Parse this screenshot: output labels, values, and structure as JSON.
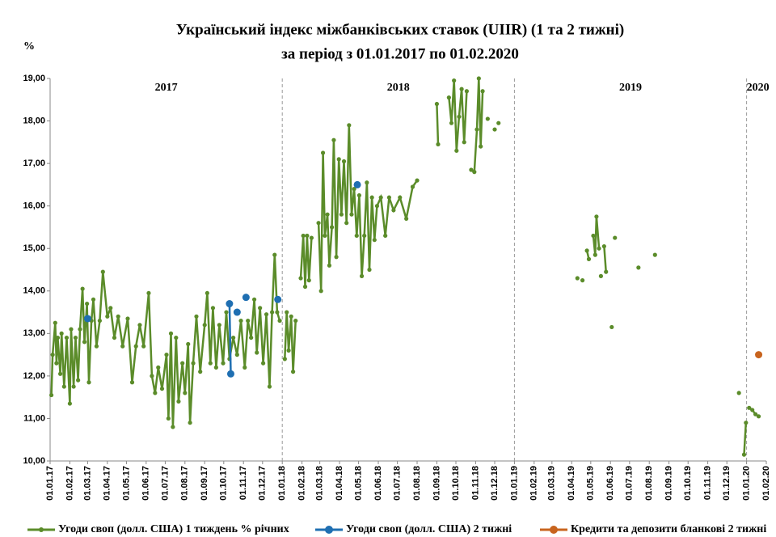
{
  "chart_data": {
    "type": "line",
    "title": "Український індекс міжбанківських ставок (UIIR) (1 та 2 тижні)",
    "subtitle": "за період з 01.01.2017 по 01.02.2020",
    "y_label": "%",
    "year_labels": [
      "2017",
      "2018",
      "2019",
      "2020"
    ],
    "dividers": [
      "01.01.18",
      "01.01.19",
      "01.01.20"
    ],
    "xlim": [
      "01.01.17",
      "01.02.20"
    ],
    "xticks": [
      "01.01.17",
      "01.02.17",
      "01.03.17",
      "01.04.17",
      "01.05.17",
      "01.06.17",
      "01.07.17",
      "01.08.17",
      "01.09.17",
      "01.10.17",
      "01.11.17",
      "01.12.17",
      "01.01.18",
      "01.02.18",
      "01.03.18",
      "01.04.18",
      "01.05.18",
      "01.06.18",
      "01.07.18",
      "01.08.18",
      "01.09.18",
      "01.10.18",
      "01.11.18",
      "01.12.18",
      "01.01.19",
      "01.02.19",
      "01.03.19",
      "01.04.19",
      "01.05.19",
      "01.06.19",
      "01.07.19",
      "01.08.19",
      "01.09.19",
      "01.10.19",
      "01.11.19",
      "01.12.19",
      "01.01.20",
      "01.02.20"
    ],
    "ylim": [
      10,
      19
    ],
    "yticks": [
      {
        "value": 10,
        "label": "10,00"
      },
      {
        "value": 11,
        "label": "11,00"
      },
      {
        "value": 12,
        "label": "12,00"
      },
      {
        "value": 13,
        "label": "13,00"
      },
      {
        "value": 14,
        "label": "14,00"
      },
      {
        "value": 15,
        "label": "15,00"
      },
      {
        "value": 16,
        "label": "16,00"
      },
      {
        "value": 17,
        "label": "17,00"
      },
      {
        "value": 18,
        "label": "18,00"
      },
      {
        "value": 19,
        "label": "19,00"
      }
    ],
    "series": [
      {
        "name": "Угоди своп (долл. США) 1 тиждень % річних",
        "color": "#5b8c2a",
        "x": [
          "03.01.17",
          "05.01.17",
          "09.01.17",
          "11.01.17",
          "13.01.17",
          "17.01.17",
          "19.01.17",
          "23.01.17",
          "27.01.17",
          "01.02.17",
          "03.02.17",
          "07.02.17",
          "10.02.17",
          "14.02.17",
          "17.02.17",
          "21.02.17",
          "24.02.17",
          "28.02.17",
          "03.03.17",
          "07.03.17",
          "10.03.17",
          "15.03.17",
          "20.03.17",
          "25.03.17",
          "01.04.17",
          "06.04.17",
          "12.04.17",
          "18.04.17",
          "25.04.17",
          "03.05.17",
          "10.05.17",
          "16.05.17",
          "22.05.17",
          "28.05.17",
          "05.06.17",
          "10.06.17",
          "15.06.17",
          "20.06.17",
          "26.06.17",
          "03.07.17",
          "06.07.17",
          "10.07.17",
          "13.07.17",
          "18.07.17",
          "22.07.17",
          "28.07.17",
          "01.08.17",
          "06.08.17",
          "09.08.17",
          "14.08.17",
          "19.08.17",
          "25.08.17",
          "01.09.17",
          "05.09.17",
          "10.09.17",
          "14.09.17",
          "19.09.17",
          "24.09.17",
          "30.09.17",
          "05.10.17",
          "10.10.17",
          "16.10.17",
          "22.10.17",
          "28.10.17",
          "03.11.17",
          "08.11.17",
          "13.11.17",
          "18.11.17",
          "22.11.17",
          "27.11.17",
          "02.12.17",
          "07.12.17",
          "12.12.17",
          "16.12.17",
          "20.12.17",
          "24.12.17",
          "28.12.17",
          null,
          "05.01.18",
          "08.01.18",
          "11.01.18",
          "15.01.18",
          "18.01.18",
          "22.01.18",
          null,
          "30.01.18",
          "03.02.18",
          "06.02.18",
          "09.02.18",
          "12.02.18",
          "16.02.18",
          null,
          "27.02.18",
          "03.03.18",
          "06.03.18",
          "09.03.18",
          "13.03.18",
          "16.03.18",
          "20.03.18",
          "23.03.18",
          "27.03.18",
          "31.03.18",
          "04.04.18",
          "08.04.18",
          "12.04.18",
          "16.04.18",
          "20.04.18",
          "24.04.18",
          "28.04.18",
          "02.05.18",
          "06.05.18",
          "10.05.18",
          "14.05.18",
          "18.05.18",
          "22.05.18",
          "26.05.18",
          "30.05.18",
          "05.06.18",
          "12.06.18",
          "18.06.18",
          "25.06.18",
          "05.07.18",
          "15.07.18",
          "25.07.18",
          "01.08.18",
          null,
          "01.09.18",
          "03.09.18",
          null,
          "20.09.18",
          "24.09.18",
          "28.09.18",
          "02.10.18",
          "06.10.18",
          "10.10.18",
          "14.10.18",
          "18.10.18",
          null,
          "25.10.18",
          "30.10.18",
          "03.11.18",
          "06.11.18",
          "09.11.18",
          "12.11.18",
          null,
          "20.11.18",
          null,
          "01.12.18",
          null,
          "07.12.18",
          null,
          "10.04.19",
          null,
          "18.04.19",
          null,
          "25.04.19",
          "28.04.19",
          null,
          "05.05.19",
          "08.05.19",
          "10.05.19",
          "14.05.19",
          null,
          "17.05.19",
          null,
          "22.05.19",
          "25.05.19",
          null,
          "03.06.19",
          null,
          "08.06.19",
          null,
          "15.07.19",
          null,
          "10.08.19",
          null,
          "20.12.19",
          null,
          "28.12.19",
          "31.12.19",
          null,
          "05.01.20",
          "10.01.20",
          "15.01.20",
          "20.01.20"
        ],
        "values": [
          11.55,
          12.5,
          13.25,
          12.3,
          12.9,
          12.05,
          13.0,
          11.75,
          12.9,
          11.35,
          13.1,
          11.75,
          12.9,
          11.9,
          13.1,
          14.05,
          12.8,
          13.7,
          11.85,
          13.3,
          13.8,
          12.7,
          13.3,
          14.45,
          13.4,
          13.6,
          12.9,
          13.4,
          12.7,
          13.35,
          11.85,
          12.7,
          13.2,
          12.7,
          13.95,
          12.0,
          11.6,
          12.2,
          11.7,
          12.5,
          11.0,
          13.0,
          10.8,
          12.9,
          11.4,
          12.3,
          11.6,
          12.75,
          10.9,
          12.3,
          13.4,
          12.1,
          13.2,
          13.95,
          12.3,
          13.6,
          12.2,
          13.2,
          12.3,
          13.5,
          12.4,
          12.9,
          12.5,
          13.3,
          12.2,
          13.3,
          12.9,
          13.8,
          12.55,
          13.6,
          12.3,
          13.45,
          11.75,
          13.5,
          14.85,
          13.5,
          13.3,
          null,
          12.4,
          13.5,
          12.6,
          13.4,
          12.1,
          13.3,
          null,
          14.3,
          15.3,
          14.1,
          15.3,
          14.25,
          15.25,
          null,
          15.6,
          14.0,
          17.25,
          15.3,
          15.8,
          14.6,
          15.5,
          17.55,
          14.8,
          17.1,
          15.8,
          17.05,
          15.6,
          17.9,
          15.8,
          16.4,
          15.3,
          16.25,
          14.35,
          15.3,
          16.55,
          14.5,
          16.2,
          15.2,
          16.0,
          16.2,
          15.3,
          16.2,
          15.9,
          16.2,
          15.7,
          16.45,
          16.6,
          null,
          18.4,
          17.45,
          null,
          18.55,
          17.95,
          18.95,
          17.3,
          18.1,
          18.75,
          17.5,
          18.7,
          null,
          16.85,
          16.8,
          17.8,
          19.0,
          17.4,
          18.7,
          null,
          18.05,
          null,
          17.8,
          null,
          17.95,
          null,
          14.3,
          null,
          14.25,
          null,
          14.95,
          14.75,
          null,
          15.3,
          14.85,
          15.75,
          15.0,
          null,
          14.35,
          null,
          15.05,
          14.45,
          null,
          13.15,
          null,
          15.25,
          null,
          14.55,
          null,
          14.85,
          null,
          11.6,
          null,
          10.15,
          10.9,
          null,
          11.25,
          11.2,
          11.1,
          11.05
        ]
      },
      {
        "name": "Угоди своп (долл. США) 2 тижні",
        "color": "#1f6fb2",
        "x": [
          "01.03.17",
          null,
          "10.10.17",
          "12.10.17",
          null,
          "22.10.17",
          null,
          "05.11.17",
          null,
          "25.12.17",
          null,
          "29.04.18"
        ],
        "values": [
          13.35,
          null,
          13.7,
          12.05,
          null,
          13.5,
          null,
          13.85,
          null,
          13.8,
          null,
          16.5
        ]
      },
      {
        "name": "Кредити та депозити бланкові 2 тижні",
        "color": "#c8641e",
        "x": [
          "20.01.20"
        ],
        "values": [
          12.5
        ]
      }
    ]
  }
}
